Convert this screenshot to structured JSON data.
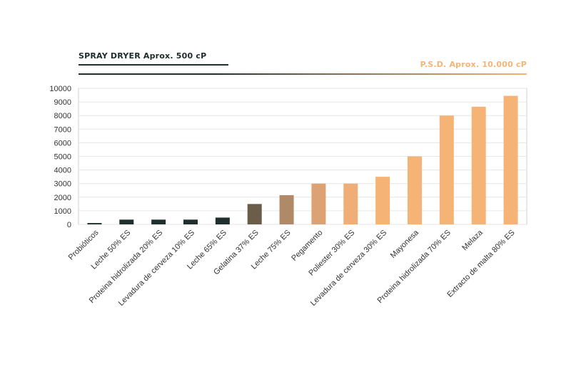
{
  "legend": {
    "left_label": "SPRAY DRYER Aprox. 500 cP",
    "right_label": "P.S.D. Aprox. 10.000 cP"
  },
  "colors": {
    "dark": "#1f2f2e",
    "light": "#f5b476",
    "grid": "#e6e6e6",
    "axis_text": "#333333"
  },
  "chart_data": {
    "type": "bar",
    "categories": [
      "Probióticos",
      "Leche 50% ES",
      "Proteina hidrolizada 20% ES",
      "Levadura de cerveza 10% ES",
      "Leche 65% ES",
      "Gelatina 37% ES",
      "Leche 75% ES",
      "Pegamento",
      "Poliester 30% ES",
      "Levadura de cerveza 30% ES",
      "Mayonesa",
      "Proteina hidrolizada 70% ES",
      "Melaza",
      "Extracto de malta 80% ES"
    ],
    "values": [
      100,
      350,
      350,
      350,
      500,
      1500,
      2150,
      3000,
      3000,
      3500,
      5000,
      8000,
      8650,
      9450
    ],
    "bar_colors": [
      "#1f2f2e",
      "#1f2f2e",
      "#1f2f2e",
      "#1f2f2e",
      "#1f2f2e",
      "#6b5d49",
      "#b08a66",
      "#dda273",
      "#f0ad76",
      "#f5b476",
      "#f5b476",
      "#f5b476",
      "#f5b476",
      "#f5b476"
    ],
    "ylim": [
      0,
      10000
    ],
    "yticks": [
      0,
      1000,
      2000,
      3000,
      4000,
      5000,
      6000,
      7000,
      8000,
      9000,
      10000
    ],
    "grid": true
  }
}
